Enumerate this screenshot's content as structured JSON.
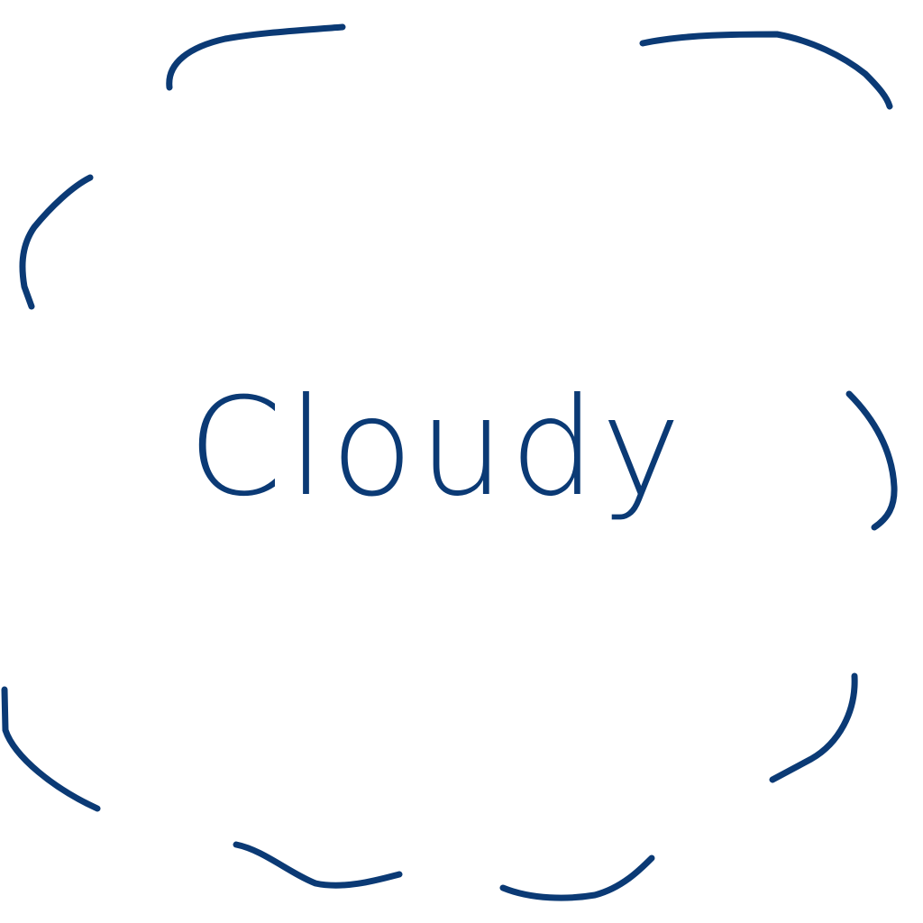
{
  "text": "Cloudy"
}
